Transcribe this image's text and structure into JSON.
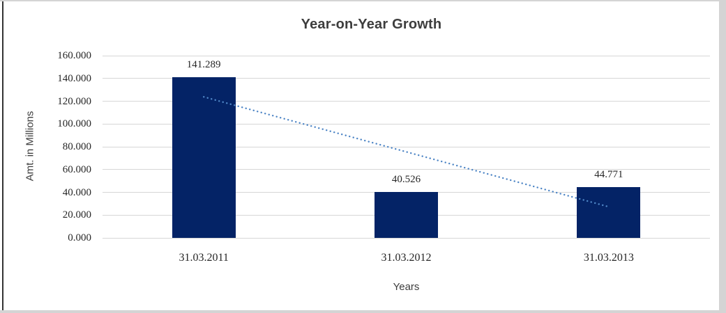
{
  "chart_data": {
    "type": "bar",
    "title": "Year-on-Year Growth",
    "xlabel": "Years",
    "ylabel": "Amt. in Millions",
    "categories": [
      "31.03.2011",
      "31.03.2012",
      "31.03.2013"
    ],
    "values": [
      141.289,
      40.526,
      44.771
    ],
    "data_labels": [
      "141.289",
      "40.526",
      "44.771"
    ],
    "ylim": [
      0,
      160
    ],
    "ytick_step": 20,
    "yticks": [
      "160.000",
      "140.000",
      "120.000",
      "100.000",
      "80.000",
      "60.000",
      "40.000",
      "20.000",
      "0.000"
    ],
    "grid": true,
    "legend": "none",
    "trendline": {
      "type": "linear",
      "style": "dotted",
      "start_value": 123.8,
      "end_value": 27.3
    }
  },
  "colors": {
    "bar": "#042366",
    "trendline": "#4f86c6",
    "gridline": "#d6d6d6",
    "title_text": "#3d3d3d",
    "label_text": "#262626",
    "frame": "#d4d4d4",
    "left_edge": "#333333",
    "background": "#ffffff"
  }
}
